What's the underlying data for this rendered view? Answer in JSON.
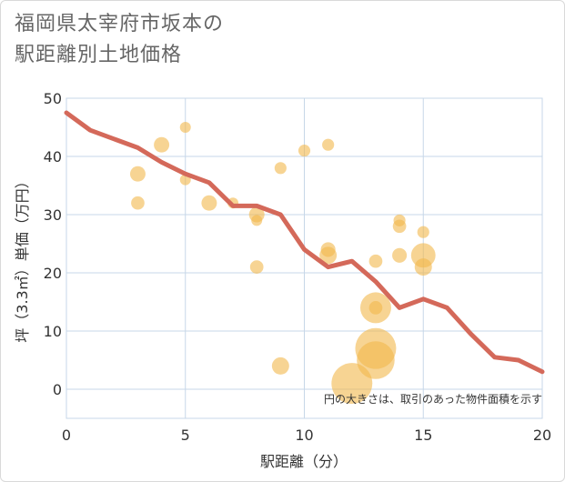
{
  "chart_data": {
    "type": "scatter",
    "title": "福岡県太宰府市坂本の\n駅距離別土地価格",
    "xlabel": "駅距離（分）",
    "ylabel": "坪（3.3㎡）単価（万円）",
    "xlim": [
      0,
      20
    ],
    "ylim": [
      -5,
      50
    ],
    "xticks": [
      "0",
      "5",
      "10",
      "15",
      "20"
    ],
    "yticks": [
      "0",
      "10",
      "20",
      "30",
      "40",
      "50"
    ],
    "grid": true,
    "note": "円の大きさは、取引のあった物件面積を示す",
    "colors": {
      "bubble": "#f2b84b",
      "line": "#d4695a",
      "grid": "#c7d7e8"
    },
    "trend_line": {
      "x": [
        0,
        1,
        2,
        3,
        4,
        5,
        6,
        7,
        8,
        9,
        10,
        11,
        12,
        13,
        14,
        15,
        16,
        17,
        18,
        19,
        20
      ],
      "y": [
        47.5,
        44.5,
        43,
        41.5,
        39,
        37,
        35.5,
        31.5,
        31.5,
        30,
        24,
        21,
        22,
        18.5,
        14,
        15.5,
        14,
        9.5,
        5.5,
        5,
        3
      ]
    },
    "bubbles": [
      {
        "x": 3,
        "y": 37,
        "size": 2
      },
      {
        "x": 3,
        "y": 32,
        "size": 1.5
      },
      {
        "x": 4,
        "y": 42,
        "size": 2
      },
      {
        "x": 5,
        "y": 45,
        "size": 1
      },
      {
        "x": 5,
        "y": 36,
        "size": 1
      },
      {
        "x": 6,
        "y": 32,
        "size": 2
      },
      {
        "x": 7,
        "y": 32,
        "size": 1
      },
      {
        "x": 8,
        "y": 30,
        "size": 2
      },
      {
        "x": 8,
        "y": 29,
        "size": 1
      },
      {
        "x": 8,
        "y": 21,
        "size": 1.5
      },
      {
        "x": 9,
        "y": 38,
        "size": 1.2
      },
      {
        "x": 9,
        "y": 4,
        "size": 2.5
      },
      {
        "x": 10,
        "y": 41,
        "size": 1.2
      },
      {
        "x": 11,
        "y": 42,
        "size": 1.2
      },
      {
        "x": 11,
        "y": 24,
        "size": 1.8
      },
      {
        "x": 11,
        "y": 23,
        "size": 2.5
      },
      {
        "x": 12,
        "y": 1,
        "size": 14
      },
      {
        "x": 13,
        "y": 22,
        "size": 1.5
      },
      {
        "x": 13,
        "y": 14,
        "size": 8
      },
      {
        "x": 13,
        "y": 14,
        "size": 1.5
      },
      {
        "x": 13,
        "y": 5,
        "size": 12
      },
      {
        "x": 13,
        "y": 7,
        "size": 14
      },
      {
        "x": 14,
        "y": 29,
        "size": 1.2
      },
      {
        "x": 14,
        "y": 28,
        "size": 1.5
      },
      {
        "x": 14,
        "y": 23,
        "size": 1.8
      },
      {
        "x": 15,
        "y": 27,
        "size": 1.2
      },
      {
        "x": 15,
        "y": 23,
        "size": 5
      },
      {
        "x": 15,
        "y": 21,
        "size": 2.5
      }
    ]
  }
}
